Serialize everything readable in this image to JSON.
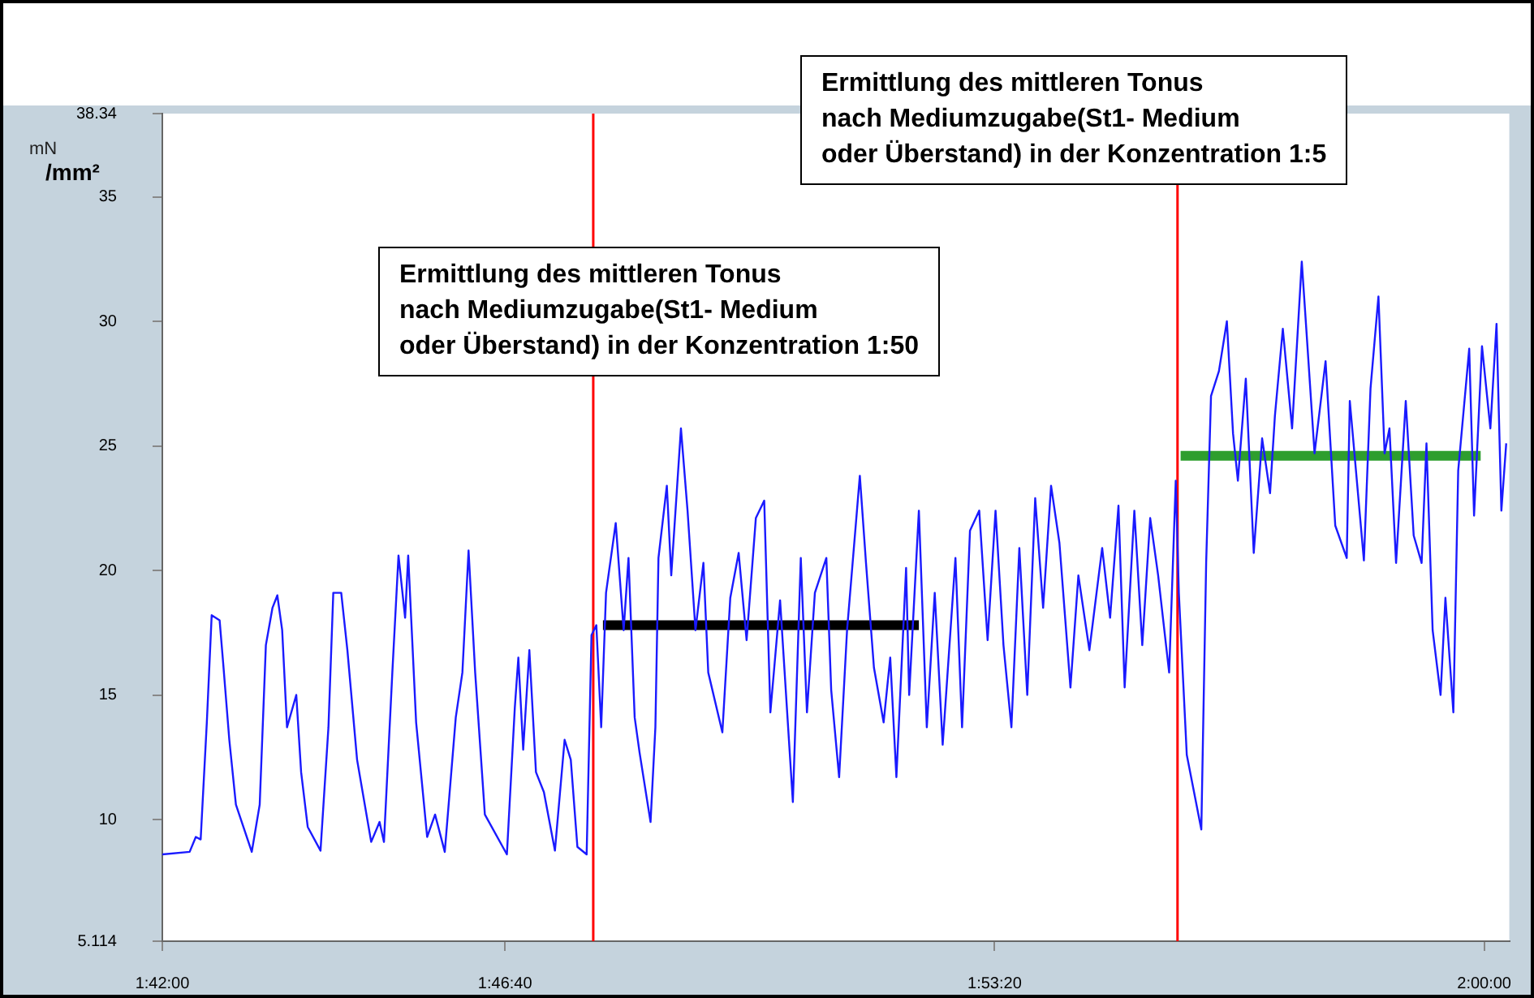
{
  "chart_data": {
    "type": "line",
    "ylabel": "mN /mm²",
    "annotations": [
      "Ermittlung des mittleren Tonus\nnach Mediumzugabe(St1- Medium\noder Überstand) in der Konzentration 1:50",
      "Ermittlung des mittleren Tonus\nnach Mediumzugabe(St1- Medium\noder Überstand) in der Konzentration 1:5"
    ],
    "xlim": [
      1.7,
      2.0057
    ],
    "xticks": [
      {
        "value": 1.7,
        "label": "1:42:00"
      },
      {
        "value": 1.777778,
        "label": "1:46:40"
      },
      {
        "value": 1.888889,
        "label": "1:53:20"
      },
      {
        "value": 2.0,
        "label": "2:00:00"
      }
    ],
    "ylim": [
      5.114,
      38.34
    ],
    "yticks": [
      5.114,
      10,
      15,
      20,
      25,
      30,
      35,
      38.34
    ],
    "ref_lines": [
      {
        "axis": "x",
        "value": 1.7978,
        "color": "#ff0000"
      },
      {
        "axis": "x",
        "value": 1.9304,
        "color": "#ff0000"
      }
    ],
    "series": [
      {
        "color": "#1a1aff",
        "x": [
          1.7,
          1.7062,
          1.7076,
          1.7087,
          1.7101,
          1.7112,
          1.713,
          1.7138,
          1.7152,
          1.7167,
          1.7203,
          1.7221,
          1.7235,
          1.725,
          1.7261,
          1.7272,
          1.7283,
          1.7304,
          1.7315,
          1.733,
          1.7359,
          1.7377,
          1.7388,
          1.7406,
          1.742,
          1.7442,
          1.7474,
          1.7493,
          1.7503,
          1.7522,
          1.7536,
          1.7551,
          1.7558,
          1.7576,
          1.7601,
          1.7619,
          1.7641,
          1.7666,
          1.7681,
          1.7695,
          1.771,
          1.7732,
          1.7782,
          1.78,
          1.7808,
          1.7819,
          1.7833,
          1.7848,
          1.7866,
          1.7891,
          1.7913,
          1.7927,
          1.7942,
          1.7963,
          1.7974,
          1.7985,
          1.7996,
          1.8007,
          1.8029,
          1.8047,
          1.8058,
          1.8072,
          1.8083,
          1.8108,
          1.8119,
          1.8126,
          1.8145,
          1.8155,
          1.8177,
          1.8192,
          1.821,
          1.8228,
          1.8239,
          1.8271,
          1.8289,
          1.8308,
          1.8326,
          1.8347,
          1.8366,
          1.838,
          1.8402,
          1.8431,
          1.8449,
          1.8463,
          1.8481,
          1.8507,
          1.8518,
          1.8536,
          1.8554,
          1.8583,
          1.8597,
          1.8615,
          1.8637,
          1.8652,
          1.8666,
          1.8688,
          1.8695,
          1.8717,
          1.8735,
          1.8753,
          1.8771,
          1.88,
          1.8815,
          1.8833,
          1.8854,
          1.8873,
          1.8891,
          1.8909,
          1.8927,
          1.8945,
          1.8963,
          1.8981,
          1.8999,
          1.9017,
          1.9036,
          1.9061,
          1.9079,
          1.9104,
          1.9133,
          1.9151,
          1.917,
          1.9184,
          1.9206,
          1.9224,
          1.9242,
          1.926,
          1.9285,
          1.93,
          1.9307,
          1.9325,
          1.9358,
          1.9369,
          1.938,
          1.9398,
          1.9416,
          1.943,
          1.9441,
          1.9459,
          1.9477,
          1.9496,
          1.9514,
          1.9525,
          1.9543,
          1.9564,
          1.9586,
          1.9597,
          1.9615,
          1.964,
          1.9662,
          1.9688,
          1.9695,
          1.9727,
          1.9742,
          1.976,
          1.9774,
          1.9785,
          1.98,
          1.9822,
          1.984,
          1.9858,
          1.9869,
          1.9883,
          1.9901,
          1.9912,
          1.993,
          1.9941,
          1.9966,
          1.9977,
          1.9995,
          2.0014,
          2.0028,
          2.0039,
          2.005
        ],
        "values": [
          8.6,
          8.7,
          9.3,
          9.2,
          13.9,
          18.2,
          18.0,
          16.3,
          13.2,
          10.6,
          8.7,
          10.6,
          17.0,
          18.5,
          19.0,
          17.6,
          13.7,
          15.0,
          11.9,
          9.7,
          8.75,
          13.7,
          19.1,
          19.1,
          16.8,
          12.4,
          9.1,
          9.9,
          9.1,
          15.9,
          20.6,
          18.1,
          20.6,
          13.9,
          9.3,
          10.2,
          8.7,
          14.1,
          15.9,
          20.8,
          15.9,
          10.2,
          8.6,
          14.5,
          16.5,
          12.8,
          16.8,
          11.9,
          11.1,
          8.75,
          13.2,
          12.4,
          8.9,
          8.6,
          17.4,
          17.8,
          13.7,
          19.1,
          21.9,
          17.6,
          20.5,
          14.1,
          12.7,
          9.9,
          13.7,
          20.5,
          23.4,
          19.8,
          25.7,
          22.4,
          17.6,
          20.3,
          15.9,
          13.5,
          18.9,
          20.7,
          17.2,
          22.1,
          22.8,
          14.3,
          18.8,
          10.7,
          20.5,
          14.3,
          19.1,
          20.5,
          15.2,
          11.7,
          17.6,
          23.8,
          20.3,
          16.1,
          13.9,
          16.5,
          11.7,
          20.1,
          15.0,
          22.4,
          13.7,
          19.1,
          13.0,
          20.5,
          13.7,
          21.6,
          22.4,
          17.2,
          22.4,
          17.0,
          13.7,
          20.9,
          15.0,
          22.9,
          18.5,
          23.4,
          21.1,
          15.3,
          19.8,
          16.8,
          20.9,
          18.1,
          22.6,
          15.3,
          22.4,
          17.0,
          22.1,
          19.8,
          15.9,
          23.6,
          19.1,
          12.6,
          9.6,
          20.3,
          27.0,
          28.0,
          30.0,
          25.5,
          23.6,
          27.7,
          20.7,
          25.3,
          23.1,
          26.2,
          29.7,
          25.7,
          32.4,
          29.5,
          24.7,
          28.4,
          21.8,
          20.5,
          26.8,
          20.4,
          27.3,
          31.0,
          24.7,
          25.7,
          20.3,
          26.8,
          21.4,
          20.3,
          25.1,
          17.6,
          15.0,
          18.9,
          14.3,
          24.0,
          28.9,
          22.2,
          29.0,
          25.7,
          29.9,
          22.4,
          25.1
        ]
      },
      {
        "color": "#000000",
        "x": [
          1.8,
          1.8717
        ],
        "values": [
          17.8,
          17.8
        ]
      },
      {
        "color": "#2e9e2e",
        "x": [
          1.9311,
          1.9992
        ],
        "values": [
          24.6,
          24.6
        ]
      }
    ]
  }
}
